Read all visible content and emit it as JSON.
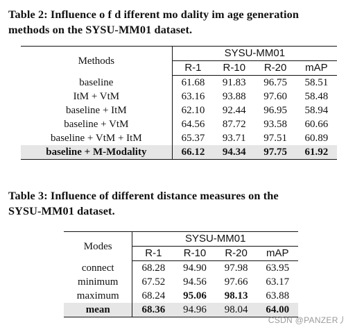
{
  "table2": {
    "caption_line1": "Table  2:  Influence o f d ifferent mo dality im age generation",
    "caption_line2": "methods on the SYSU-MM01 dataset.",
    "row_header": "Methods",
    "group_header": "SYSU-MM01",
    "columns": [
      "R-1",
      "R-10",
      "R-20",
      "mAP"
    ],
    "rows": [
      {
        "label": "baseline",
        "values": [
          "61.68",
          "91.83",
          "96.75",
          "58.51"
        ]
      },
      {
        "label": "ItM + VtM",
        "values": [
          "63.16",
          "93.88",
          "97.60",
          "58.48"
        ]
      },
      {
        "label": "baseline + ItM",
        "values": [
          "62.10",
          "92.44",
          "96.95",
          "58.94"
        ]
      },
      {
        "label": "baseline + VtM",
        "values": [
          "64.56",
          "87.72",
          "93.58",
          "60.66"
        ]
      },
      {
        "label": "baseline + VtM + ItM",
        "values": [
          "65.37",
          "93.71",
          "97.51",
          "60.89"
        ]
      },
      {
        "label": "baseline + M-Modality",
        "values": [
          "66.12",
          "94.34",
          "97.75",
          "61.92"
        ]
      }
    ]
  },
  "table3": {
    "caption_line1": "Table  3:  Influence  of  different  distance  measures  on  the",
    "caption_line2": "SYSU-MM01 dataset.",
    "row_header": "Modes",
    "group_header": "SYSU-MM01",
    "columns": [
      "R-1",
      "R-10",
      "R-20",
      "mAP"
    ],
    "rows": [
      {
        "label": "connect",
        "values": [
          "68.28",
          "94.90",
          "97.98",
          "63.95"
        ]
      },
      {
        "label": "minimum",
        "values": [
          "67.52",
          "94.56",
          "97.66",
          "63.17"
        ]
      },
      {
        "label": "maximum",
        "values": [
          "68.24",
          "95.06",
          "98.13",
          "63.88"
        ]
      },
      {
        "label": "mean",
        "values": [
          "68.36",
          "94.96",
          "98.04",
          "64.00"
        ]
      }
    ]
  },
  "watermark": "CSDN @PANZER丿"
}
